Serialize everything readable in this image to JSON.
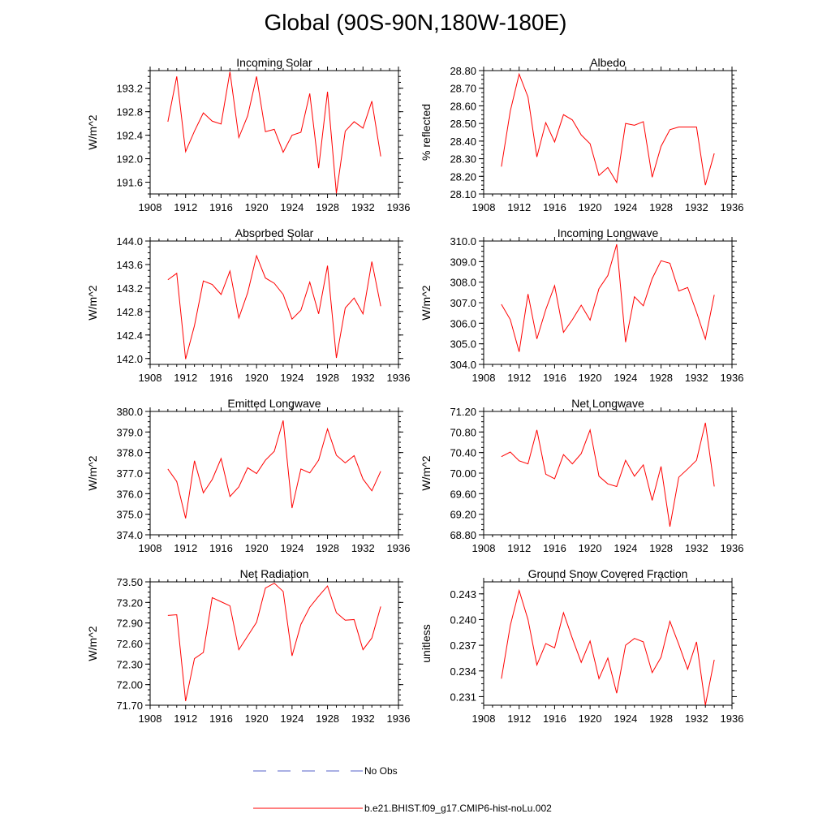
{
  "page": {
    "title": "Global (90S-90N,180W-180E)"
  },
  "legend": {
    "entries": [
      {
        "label": "No Obs",
        "style": "dashed",
        "color": "#5560c8"
      },
      {
        "label": "b.e21.BHIST.f09_g17.CMIP6-hist-noLu.002",
        "style": "solid",
        "color": "#ff0000"
      }
    ]
  },
  "chart_data": [
    {
      "type": "line",
      "title": "Incoming Solar",
      "ylabel": "W/m^2",
      "xlim": [
        1908,
        1936
      ],
      "ylim": [
        191.4,
        193.5
      ],
      "xticks": [
        1908,
        1912,
        1916,
        1920,
        1924,
        1928,
        1932,
        1936
      ],
      "yticks": [
        191.6,
        192.0,
        192.4,
        192.8,
        193.2
      ],
      "ydecimals": 1,
      "x": [
        1910,
        1911,
        1912,
        1913,
        1914,
        1915,
        1916,
        1917,
        1918,
        1919,
        1920,
        1921,
        1922,
        1923,
        1924,
        1925,
        1926,
        1927,
        1928,
        1929,
        1930,
        1931,
        1932,
        1933,
        1934
      ],
      "series": [
        {
          "name": "b.e21.BHIST.f09_g17.CMIP6-hist-noLu.002",
          "color": "#ff0000",
          "values": [
            192.63,
            193.4,
            192.12,
            192.47,
            192.78,
            192.64,
            192.59,
            193.48,
            192.36,
            192.73,
            193.4,
            192.46,
            192.5,
            192.11,
            192.4,
            192.45,
            193.11,
            191.84,
            193.14,
            191.41,
            192.47,
            192.63,
            192.52,
            192.98,
            192.04
          ]
        }
      ]
    },
    {
      "type": "line",
      "title": "Albedo",
      "ylabel": "% reflected",
      "xlim": [
        1908,
        1936
      ],
      "ylim": [
        28.1,
        28.8
      ],
      "xticks": [
        1908,
        1912,
        1916,
        1920,
        1924,
        1928,
        1932,
        1936
      ],
      "yticks": [
        28.1,
        28.2,
        28.3,
        28.4,
        28.5,
        28.6,
        28.7,
        28.8
      ],
      "ydecimals": 2,
      "x": [
        1910,
        1911,
        1912,
        1913,
        1914,
        1915,
        1916,
        1917,
        1918,
        1919,
        1920,
        1921,
        1922,
        1923,
        1924,
        1925,
        1926,
        1927,
        1928,
        1929,
        1930,
        1931,
        1932,
        1933,
        1934
      ],
      "series": [
        {
          "name": "b.e21.BHIST.f09_g17.CMIP6-hist-noLu.002",
          "color": "#ff0000",
          "values": [
            28.255,
            28.57,
            28.78,
            28.65,
            28.31,
            28.505,
            28.395,
            28.55,
            28.52,
            28.435,
            28.385,
            28.205,
            28.25,
            28.165,
            28.5,
            28.49,
            28.51,
            28.195,
            28.37,
            28.465,
            28.48,
            28.48,
            28.48,
            28.15,
            28.33
          ]
        }
      ]
    },
    {
      "type": "line",
      "title": "Absorbed Solar",
      "ylabel": "W/m^2",
      "xlim": [
        1908,
        1936
      ],
      "ylim": [
        141.9,
        144.0
      ],
      "xticks": [
        1908,
        1912,
        1916,
        1920,
        1924,
        1928,
        1932,
        1936
      ],
      "yticks": [
        142.0,
        142.4,
        142.8,
        143.2,
        143.6,
        144.0
      ],
      "ydecimals": 1,
      "x": [
        1910,
        1911,
        1912,
        1913,
        1914,
        1915,
        1916,
        1917,
        1918,
        1919,
        1920,
        1921,
        1922,
        1923,
        1924,
        1925,
        1926,
        1927,
        1928,
        1929,
        1930,
        1931,
        1932,
        1933,
        1934
      ],
      "series": [
        {
          "name": "b.e21.BHIST.f09_g17.CMIP6-hist-noLu.002",
          "color": "#ff0000",
          "values": [
            143.34,
            143.45,
            141.99,
            142.56,
            143.32,
            143.26,
            143.09,
            143.49,
            142.69,
            143.12,
            143.75,
            143.37,
            143.28,
            143.09,
            142.67,
            142.82,
            143.3,
            142.76,
            143.58,
            142.01,
            142.86,
            143.03,
            142.76,
            143.65,
            142.89
          ]
        }
      ]
    },
    {
      "type": "line",
      "title": "Incoming Longwave",
      "ylabel": "W/m^2",
      "xlim": [
        1908,
        1936
      ],
      "ylim": [
        304.0,
        310.0
      ],
      "xticks": [
        1908,
        1912,
        1916,
        1920,
        1924,
        1928,
        1932,
        1936
      ],
      "yticks": [
        304.0,
        305.0,
        306.0,
        307.0,
        308.0,
        309.0,
        310.0
      ],
      "ydecimals": 1,
      "x": [
        1910,
        1911,
        1912,
        1913,
        1914,
        1915,
        1916,
        1917,
        1918,
        1919,
        1920,
        1921,
        1922,
        1923,
        1924,
        1925,
        1926,
        1927,
        1928,
        1929,
        1930,
        1931,
        1932,
        1933,
        1934
      ],
      "series": [
        {
          "name": "b.e21.BHIST.f09_g17.CMIP6-hist-noLu.002",
          "color": "#ff0000",
          "values": [
            306.92,
            306.18,
            304.61,
            307.42,
            305.24,
            306.66,
            307.83,
            305.56,
            306.17,
            306.88,
            306.15,
            307.68,
            308.32,
            309.84,
            305.08,
            307.29,
            306.85,
            308.17,
            309.04,
            308.92,
            307.57,
            307.74,
            306.54,
            305.23,
            307.38
          ]
        }
      ]
    },
    {
      "type": "line",
      "title": "Emitted Longwave",
      "ylabel": "W/m^2",
      "xlim": [
        1908,
        1936
      ],
      "ylim": [
        374.0,
        380.0
      ],
      "xticks": [
        1908,
        1912,
        1916,
        1920,
        1924,
        1928,
        1932,
        1936
      ],
      "yticks": [
        374.0,
        375.0,
        376.0,
        377.0,
        378.0,
        379.0,
        380.0
      ],
      "ydecimals": 1,
      "x": [
        1910,
        1911,
        1912,
        1913,
        1914,
        1915,
        1916,
        1917,
        1918,
        1919,
        1920,
        1921,
        1922,
        1923,
        1924,
        1925,
        1926,
        1927,
        1928,
        1929,
        1930,
        1931,
        1932,
        1933,
        1934
      ],
      "series": [
        {
          "name": "b.e21.BHIST.f09_g17.CMIP6-hist-noLu.002",
          "color": "#ff0000",
          "values": [
            377.2,
            376.59,
            374.8,
            377.6,
            376.04,
            376.69,
            377.71,
            375.86,
            376.33,
            377.26,
            376.98,
            377.63,
            378.06,
            379.56,
            375.3,
            377.2,
            377.01,
            377.63,
            379.15,
            377.87,
            377.5,
            377.85,
            376.71,
            376.14,
            377.09
          ]
        }
      ]
    },
    {
      "type": "line",
      "title": "Net Longwave",
      "ylabel": "W/m^2",
      "xlim": [
        1908,
        1936
      ],
      "ylim": [
        68.8,
        71.2
      ],
      "xticks": [
        1908,
        1912,
        1916,
        1920,
        1924,
        1928,
        1932,
        1936
      ],
      "yticks": [
        68.8,
        69.2,
        69.6,
        70.0,
        70.4,
        70.8,
        71.2
      ],
      "ydecimals": 2,
      "x": [
        1910,
        1911,
        1912,
        1913,
        1914,
        1915,
        1916,
        1917,
        1918,
        1919,
        1920,
        1921,
        1922,
        1923,
        1924,
        1925,
        1926,
        1927,
        1928,
        1929,
        1930,
        1931,
        1932,
        1933,
        1934
      ],
      "series": [
        {
          "name": "b.e21.BHIST.f09_g17.CMIP6-hist-noLu.002",
          "color": "#ff0000",
          "values": [
            70.32,
            70.41,
            70.24,
            70.18,
            70.84,
            69.98,
            69.89,
            70.36,
            70.18,
            70.38,
            70.84,
            69.94,
            69.79,
            69.74,
            70.25,
            69.94,
            70.16,
            69.47,
            70.13,
            68.96,
            69.92,
            70.08,
            70.25,
            70.98,
            69.74
          ]
        }
      ]
    },
    {
      "type": "line",
      "title": "Net Radiation",
      "ylabel": "W/m^2",
      "xlim": [
        1908,
        1936
      ],
      "ylim": [
        71.7,
        73.5
      ],
      "xticks": [
        1908,
        1912,
        1916,
        1920,
        1924,
        1928,
        1932,
        1936
      ],
      "yticks": [
        71.7,
        72.0,
        72.3,
        72.6,
        72.9,
        73.2,
        73.5
      ],
      "ydecimals": 2,
      "x": [
        1910,
        1911,
        1912,
        1913,
        1914,
        1915,
        1916,
        1917,
        1918,
        1919,
        1920,
        1921,
        1922,
        1923,
        1924,
        1925,
        1926,
        1927,
        1928,
        1929,
        1930,
        1931,
        1932,
        1933,
        1934
      ],
      "series": [
        {
          "name": "b.e21.BHIST.f09_g17.CMIP6-hist-noLu.002",
          "color": "#ff0000",
          "values": [
            73.01,
            73.02,
            71.76,
            72.38,
            72.47,
            73.27,
            73.21,
            73.15,
            72.51,
            72.71,
            72.91,
            73.41,
            73.48,
            73.36,
            72.42,
            72.88,
            73.13,
            73.29,
            73.44,
            73.05,
            72.94,
            72.95,
            72.51,
            72.68,
            73.14
          ]
        }
      ]
    },
    {
      "type": "line",
      "title": "Ground Snow Covered Fraction",
      "ylabel": "unitless",
      "xlim": [
        1908,
        1936
      ],
      "ylim": [
        0.23,
        0.2444
      ],
      "xticks": [
        1908,
        1912,
        1916,
        1920,
        1924,
        1928,
        1932,
        1936
      ],
      "yticks": [
        0.231,
        0.234,
        0.237,
        0.24,
        0.243
      ],
      "ydecimals": 3,
      "x": [
        1910,
        1911,
        1912,
        1913,
        1914,
        1915,
        1916,
        1917,
        1918,
        1919,
        1920,
        1921,
        1922,
        1923,
        1924,
        1925,
        1926,
        1927,
        1928,
        1929,
        1930,
        1931,
        1932,
        1933,
        1934
      ],
      "series": [
        {
          "name": "b.e21.BHIST.f09_g17.CMIP6-hist-noLu.002",
          "color": "#ff0000",
          "values": [
            0.2331,
            0.2393,
            0.2434,
            0.24,
            0.2347,
            0.2372,
            0.2367,
            0.2408,
            0.2378,
            0.235,
            0.2375,
            0.2331,
            0.2355,
            0.2314,
            0.237,
            0.2378,
            0.2374,
            0.2338,
            0.2356,
            0.2398,
            0.2371,
            0.2342,
            0.2374,
            0.23,
            0.2353
          ]
        }
      ]
    }
  ]
}
